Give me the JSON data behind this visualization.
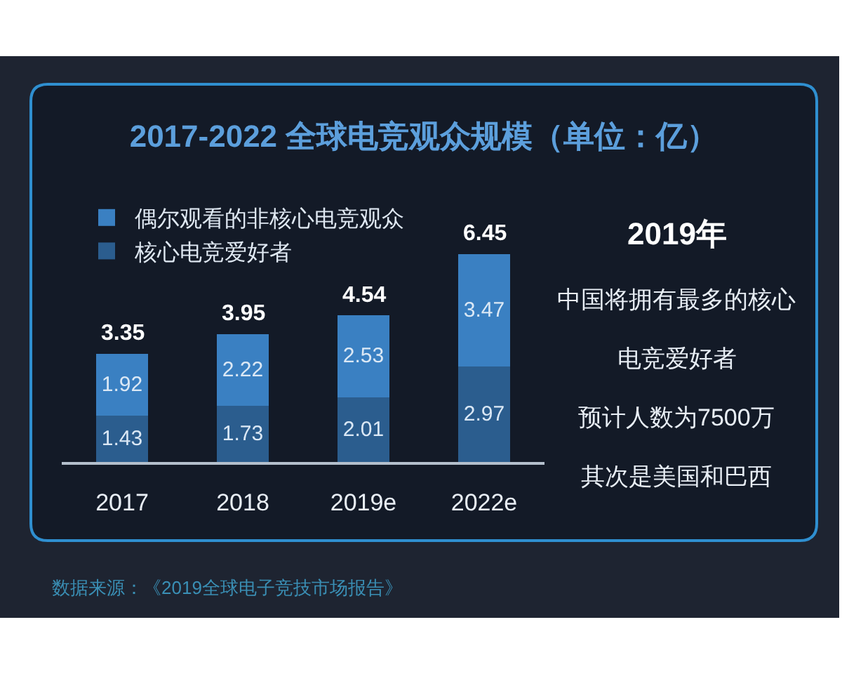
{
  "chart_data": [
    {
      "type": "bar",
      "title": "2017-2022 全球电竞观众规模（单位：亿）",
      "categories": [
        "2017",
        "2018",
        "2019e",
        "2022e"
      ],
      "series": [
        {
          "name": "核心电竞爱好者",
          "color": "#2b5d8e",
          "values": [
            1.43,
            1.73,
            2.01,
            2.97
          ]
        },
        {
          "name": "偶尔观看的非核心电竞观众",
          "color": "#3a80c2",
          "values": [
            1.92,
            2.22,
            2.53,
            3.47
          ]
        }
      ],
      "stacked": true,
      "data_labels": true,
      "totals": [
        "3.35",
        "3.95",
        "4.54",
        "6.45"
      ],
      "tick_labels": "x",
      "legend": "top left",
      "annotations": [
        "数据来源：《2019全球电子竞技市场报告》"
      ]
    },
    {
      "type": "other",
      "title": "2019年",
      "annotations": [
        "中国将拥有最多的核心",
        "电竞爱好者",
        "预计人数为7500万",
        "其次是美国和巴西"
      ]
    }
  ]
}
